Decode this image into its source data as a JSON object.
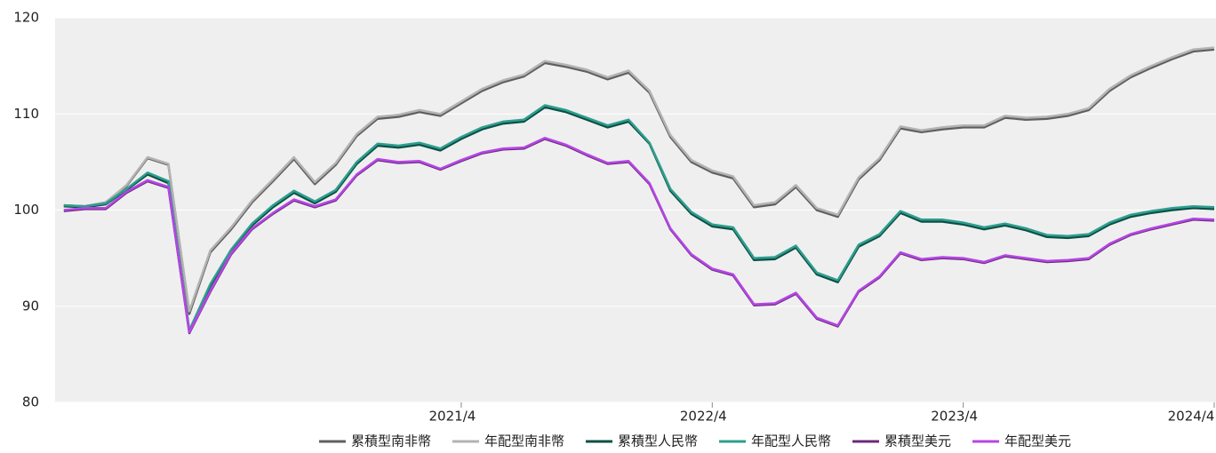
{
  "chart_data": {
    "type": "line",
    "categories": [
      null,
      null,
      null,
      null,
      null,
      null,
      null,
      null,
      null,
      null,
      null,
      null,
      null,
      null,
      null,
      null,
      null,
      null,
      null,
      "2021/4",
      null,
      null,
      null,
      null,
      null,
      null,
      null,
      null,
      null,
      null,
      null,
      "2022/4",
      null,
      null,
      null,
      null,
      null,
      null,
      null,
      null,
      null,
      null,
      null,
      "2023/4",
      null,
      null,
      null,
      null,
      null,
      null,
      null,
      null,
      null,
      null,
      null,
      "2024/4"
    ],
    "ylim": [
      80,
      120
    ],
    "yticks": [
      80,
      90,
      100,
      110,
      120
    ],
    "grid": true,
    "series": [
      {
        "name": "累積型南非幣",
        "color": "#5f5f5f",
        "values": [
          100.5,
          100.4,
          100.8,
          102.5,
          105.4,
          104.7,
          89.2,
          95.6,
          98.0,
          100.8,
          103.0,
          105.3,
          102.7,
          104.7,
          107.7,
          109.5,
          109.7,
          110.2,
          109.8,
          111.1,
          112.4,
          113.3,
          113.9,
          115.3,
          114.9,
          114.4,
          113.6,
          114.3,
          112.2,
          107.6,
          105.0,
          103.9,
          103.3,
          100.3,
          100.6,
          102.4,
          100.0,
          99.3,
          103.2,
          105.2,
          108.5,
          108.1,
          108.4,
          108.6,
          108.6,
          109.6,
          109.4,
          109.5,
          109.8,
          110.4,
          112.4,
          113.8,
          114.8,
          115.7,
          116.5,
          116.7
        ]
      },
      {
        "name": "年配型南非幣",
        "color": "#b3b3b3",
        "values": [
          100.5,
          100.4,
          100.8,
          102.6,
          105.5,
          104.8,
          89.5,
          95.8,
          98.2,
          101.0,
          103.2,
          105.5,
          102.9,
          104.9,
          107.9,
          109.7,
          109.9,
          110.4,
          110.0,
          111.3,
          112.6,
          113.5,
          114.1,
          115.5,
          115.1,
          114.6,
          113.8,
          114.5,
          112.4,
          107.8,
          105.2,
          104.1,
          103.5,
          100.5,
          100.8,
          102.6,
          100.2,
          99.5,
          103.4,
          105.4,
          108.7,
          108.3,
          108.6,
          108.8,
          108.8,
          109.8,
          109.6,
          109.7,
          110.0,
          110.6,
          112.6,
          114.0,
          115.0,
          115.9,
          116.7,
          116.9
        ]
      },
      {
        "name": "累積型人民幣",
        "color": "#0b4f45",
        "values": [
          100.4,
          100.3,
          100.6,
          102.1,
          103.7,
          102.8,
          87.4,
          92.1,
          95.7,
          98.4,
          100.3,
          101.8,
          100.7,
          101.9,
          104.8,
          106.7,
          106.5,
          106.8,
          106.2,
          107.4,
          108.4,
          109.0,
          109.2,
          110.7,
          110.2,
          109.4,
          108.6,
          109.2,
          106.9,
          102.0,
          99.6,
          98.3,
          98.0,
          94.8,
          94.9,
          96.1,
          93.3,
          92.5,
          96.2,
          97.3,
          99.7,
          98.8,
          98.8,
          98.5,
          98.0,
          98.4,
          97.9,
          97.2,
          97.1,
          97.3,
          98.5,
          99.3,
          99.7,
          100.0,
          100.2,
          100.1
        ]
      },
      {
        "name": "年配型人民幣",
        "color": "#2e9e8e",
        "values": [
          100.5,
          100.4,
          100.7,
          102.2,
          103.9,
          103.0,
          87.5,
          92.3,
          95.9,
          98.6,
          100.5,
          102.0,
          100.9,
          102.1,
          105.0,
          106.9,
          106.7,
          107.0,
          106.4,
          107.6,
          108.6,
          109.2,
          109.4,
          110.9,
          110.4,
          109.6,
          108.8,
          109.4,
          107.0,
          102.2,
          99.8,
          98.5,
          98.2,
          95.0,
          95.1,
          96.3,
          93.5,
          92.7,
          96.4,
          97.5,
          99.9,
          99.0,
          99.0,
          98.7,
          98.2,
          98.6,
          98.1,
          97.4,
          97.3,
          97.5,
          98.7,
          99.5,
          99.9,
          100.2,
          100.4,
          100.3
        ]
      },
      {
        "name": "累積型美元",
        "color": "#6b2a7a",
        "values": [
          99.9,
          100.1,
          100.1,
          101.8,
          103.0,
          102.3,
          87.2,
          91.5,
          95.4,
          98.0,
          99.6,
          101.0,
          100.3,
          101.0,
          103.6,
          105.2,
          104.9,
          105.0,
          104.2,
          105.1,
          105.9,
          106.3,
          106.4,
          107.4,
          106.7,
          105.7,
          104.8,
          105.0,
          102.7,
          98.0,
          95.3,
          93.8,
          93.2,
          90.1,
          90.2,
          91.3,
          88.7,
          87.9,
          91.5,
          93.0,
          95.5,
          94.8,
          95.0,
          94.9,
          94.5,
          95.2,
          94.9,
          94.6,
          94.7,
          94.9,
          96.4,
          97.4,
          98.0,
          98.5,
          99.0,
          98.9
        ]
      },
      {
        "name": "年配型美元",
        "color": "#b545e6",
        "values": [
          100.0,
          100.2,
          100.2,
          101.9,
          103.1,
          102.4,
          87.3,
          91.6,
          95.5,
          98.1,
          99.7,
          101.1,
          100.4,
          101.1,
          103.7,
          105.3,
          105.0,
          105.1,
          104.3,
          105.2,
          106.0,
          106.4,
          106.5,
          107.5,
          106.8,
          105.8,
          104.9,
          105.1,
          102.8,
          98.1,
          95.4,
          93.9,
          93.3,
          90.2,
          90.3,
          91.4,
          88.8,
          88.0,
          91.6,
          93.1,
          95.6,
          94.9,
          95.1,
          95.0,
          94.6,
          95.3,
          95.0,
          94.7,
          94.8,
          95.0,
          96.5,
          97.5,
          98.1,
          98.6,
          99.1,
          99.0
        ]
      }
    ]
  }
}
